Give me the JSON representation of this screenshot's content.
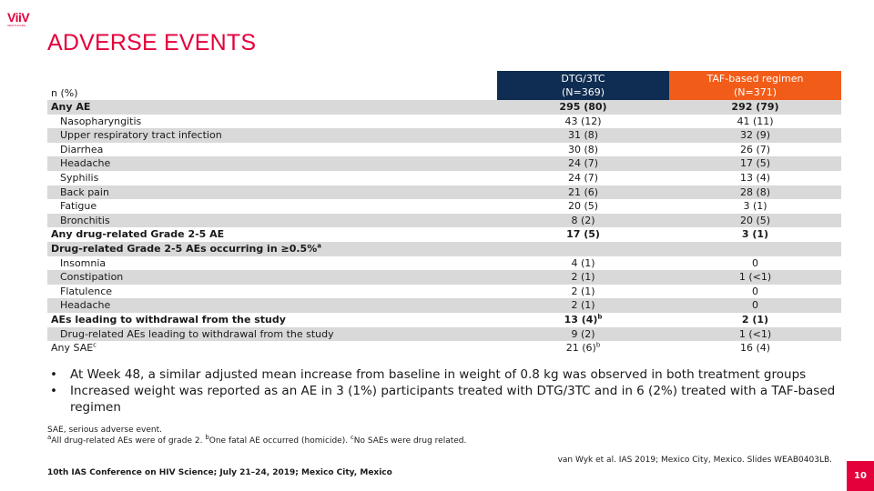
{
  "logo": {
    "mark": "ViiV",
    "sub": "HEALTHCARE"
  },
  "title": "ADVERSE EVENTS",
  "table": {
    "row_label_header": "n (%)",
    "columns": [
      {
        "name": "DTG/3TC",
        "n": "(N=369)"
      },
      {
        "name": "TAF-based regimen",
        "n": "(N=371)"
      }
    ],
    "rows": [
      {
        "label": "Any AE",
        "a": "295 (80)",
        "b": "292 (79)",
        "bold": true,
        "indent": false
      },
      {
        "label": "Nasopharyngitis",
        "a": "43 (12)",
        "b": "41 (11)",
        "bold": false,
        "indent": true
      },
      {
        "label": "Upper respiratory tract infection",
        "a": "31 (8)",
        "b": "32 (9)",
        "bold": false,
        "indent": true
      },
      {
        "label": "Diarrhea",
        "a": "30 (8)",
        "b": "26 (7)",
        "bold": false,
        "indent": true
      },
      {
        "label": "Headache",
        "a": "24 (7)",
        "b": "17 (5)",
        "bold": false,
        "indent": true
      },
      {
        "label": "Syphilis",
        "a": "24 (7)",
        "b": "13 (4)",
        "bold": false,
        "indent": true
      },
      {
        "label": "Back pain",
        "a": "21 (6)",
        "b": "28 (8)",
        "bold": false,
        "indent": true
      },
      {
        "label": "Fatigue",
        "a": "20 (5)",
        "b": "3 (1)",
        "bold": false,
        "indent": true
      },
      {
        "label": "Bronchitis",
        "a": "8 (2)",
        "b": "20 (5)",
        "bold": false,
        "indent": true
      },
      {
        "label": "Any drug-related Grade 2-5 AE",
        "a": "17 (5)",
        "b": "3 (1)",
        "bold": true,
        "indent": false
      },
      {
        "label": "Drug-related Grade 2-5 AEs occurring in ≥0.5%",
        "label_sup": "a",
        "a": "",
        "b": "",
        "bold": true,
        "indent": false
      },
      {
        "label": "Insomnia",
        "a": "4 (1)",
        "b": "0",
        "bold": false,
        "indent": true
      },
      {
        "label": "Constipation",
        "a": "2 (1)",
        "b": "1 (<1)",
        "bold": false,
        "indent": true
      },
      {
        "label": "Flatulence",
        "a": "2 (1)",
        "b": "0",
        "bold": false,
        "indent": true
      },
      {
        "label": "Headache",
        "a": "2 (1)",
        "b": "0",
        "bold": false,
        "indent": true
      },
      {
        "label": "AEs leading to withdrawal from the study",
        "a": "13 (4)",
        "a_sup": "b",
        "b": "2 (1)",
        "bold": true,
        "indent": false
      },
      {
        "label": "Drug-related AEs leading to withdrawal from the study",
        "a": "9 (2)",
        "b": "1 (<1)",
        "bold": false,
        "indent": true
      },
      {
        "label": "Any SAE",
        "label_sup": "c",
        "a": "21 (6)",
        "a_sup": "b",
        "b": "16 (4)",
        "bold": false,
        "indent": false
      }
    ]
  },
  "bullets": [
    "At Week 48, a similar adjusted mean increase from baseline in weight of 0.8 kg was observed in both treatment groups",
    "Increased weight was reported as an AE in 3 (1%) participants treated with DTG/3TC and in 6 (2%) treated with a TAF-based regimen"
  ],
  "bullet_symbol": "•",
  "footnotes": {
    "line1": "SAE, serious adverse event.",
    "a_mark": "a",
    "a_text": "All drug-related AEs were of grade 2. ",
    "b_mark": "b",
    "b_text": "One fatal AE occurred (homicide). ",
    "c_mark": "c",
    "c_text": "No SAEs were drug related."
  },
  "reference": "van Wyk et al. IAS 2019; Mexico City, Mexico. Slides WEAB0403LB.",
  "conference": "10th IAS Conference on HIV Science; July 21–24, 2019; Mexico City, Mexico",
  "page_number": "10",
  "colors": {
    "brand_red": "#e4003b",
    "navy": "#0f2d52",
    "orange": "#f25c19",
    "shade": "#d9d9d9"
  }
}
